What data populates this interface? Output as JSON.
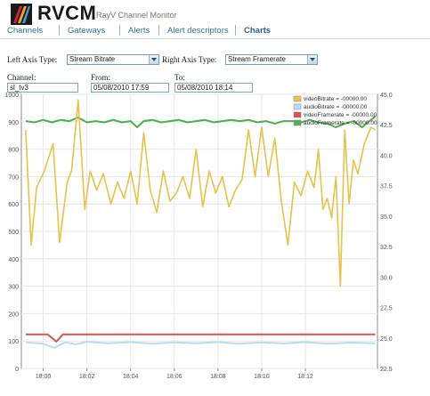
{
  "app": {
    "name": "RVCM",
    "subtitle": "RayV Channel Monitor"
  },
  "nav": {
    "items": [
      {
        "label": "Channels",
        "active": false
      },
      {
        "label": "Gateways",
        "active": false
      },
      {
        "label": "Alerts",
        "active": false
      },
      {
        "label": "Alert descriptors",
        "active": false
      },
      {
        "label": "Charts",
        "active": true
      }
    ]
  },
  "controls": {
    "left_axis_label": "Left Axis Type:",
    "left_axis_value": "Stream Bitrate",
    "right_axis_label": "Right Axis Type:",
    "right_axis_value": "Stream Framerate",
    "channel_label": "Channel:",
    "channel_value": "sl_tv3",
    "from_label": "From:",
    "from_value": "05/08/2010 17:59",
    "to_label": "To:",
    "to_value": "05/08/2010 18:14"
  },
  "chart_data": {
    "type": "line",
    "x_ticks": [
      "18:00",
      "18:02",
      "18:04",
      "18:06",
      "18:08",
      "18:10",
      "18:12"
    ],
    "x_range_min": [
      -0.8,
      15.2
    ],
    "left_ylim": [
      0,
      1000
    ],
    "left_ticks": [
      0,
      100,
      200,
      300,
      400,
      500,
      600,
      700,
      800,
      900,
      1000
    ],
    "right_ylim": [
      22.5,
      45.0
    ],
    "right_ticks": [
      "22.5",
      "25.0",
      "27.5",
      "30.0",
      "32.5",
      "35.0",
      "37.5",
      "40.0",
      "42.5",
      "45.0"
    ],
    "grid": true,
    "legend_position": "top-right",
    "series": [
      {
        "name": "videoBitrate = -00000.00",
        "color": "#e8c24a",
        "axis": "left",
        "x": [
          -0.8,
          -0.55,
          -0.3,
          0.05,
          0.45,
          0.75,
          1.1,
          1.3,
          1.6,
          1.9,
          2.15,
          2.45,
          2.75,
          3.1,
          3.4,
          3.7,
          4.0,
          4.3,
          4.6,
          4.9,
          5.2,
          5.5,
          5.8,
          6.1,
          6.4,
          6.7,
          7.0,
          7.3,
          7.6,
          7.9,
          8.2,
          8.5,
          8.8,
          9.1,
          9.4,
          9.7,
          10.0,
          10.3,
          10.6,
          10.9,
          11.2,
          11.5,
          11.8,
          12.1,
          12.4,
          12.6,
          12.8,
          13.0,
          13.2,
          13.4,
          13.6,
          13.8,
          14.0,
          14.2,
          14.4,
          14.7,
          15.0,
          15.2
        ],
        "y": [
          870,
          450,
          660,
          720,
          820,
          460,
          680,
          720,
          980,
          580,
          720,
          650,
          710,
          600,
          680,
          620,
          720,
          600,
          860,
          650,
          570,
          720,
          610,
          640,
          700,
          620,
          800,
          590,
          720,
          640,
          700,
          590,
          650,
          690,
          870,
          700,
          880,
          700,
          840,
          610,
          450,
          680,
          630,
          720,
          660,
          800,
          580,
          620,
          550,
          700,
          300,
          870,
          600,
          760,
          710,
          820,
          880,
          870
        ]
      },
      {
        "name": "audioBitrate = -00000.00",
        "color": "#b8dcef",
        "axis": "left",
        "x": [
          -0.8,
          0.0,
          0.5,
          1.0,
          1.5,
          2.0,
          3.0,
          4.0,
          5.0,
          6.0,
          7.0,
          8.0,
          9.0,
          10.0,
          11.0,
          12.0,
          13.0,
          14.0,
          15.2
        ],
        "y": [
          95,
          90,
          75,
          95,
          88,
          97,
          92,
          96,
          90,
          95,
          92,
          96,
          90,
          95,
          91,
          96,
          90,
          94,
          92
        ]
      },
      {
        "name": "videoFramerate = -00000.00",
        "color": "#d9534f",
        "axis": "right",
        "x": [
          -0.8,
          0.2,
          0.6,
          0.9,
          1.2,
          3.0,
          6.0,
          9.0,
          12.0,
          15.2
        ],
        "y": [
          25.3,
          25.3,
          24.7,
          25.3,
          25.3,
          25.3,
          25.3,
          25.3,
          25.3,
          25.3
        ]
      },
      {
        "name": "audioFramerate = -00000.00",
        "color": "#4cae4c",
        "axis": "right",
        "x": [
          -0.8,
          -0.4,
          0.0,
          0.4,
          0.8,
          1.2,
          1.6,
          2.0,
          2.4,
          2.8,
          3.2,
          3.6,
          4.0,
          4.3,
          4.6,
          5.0,
          5.4,
          5.8,
          6.2,
          6.6,
          7.0,
          7.4,
          7.8,
          8.2,
          8.6,
          9.0,
          9.4,
          9.8,
          10.2,
          10.6,
          11.0,
          11.4,
          11.8,
          12.2,
          12.6,
          13.0,
          13.4,
          13.8,
          14.2,
          14.6,
          15.2
        ],
        "y": [
          42.8,
          42.7,
          42.9,
          42.7,
          42.9,
          42.8,
          43.1,
          42.7,
          42.8,
          42.7,
          42.9,
          42.7,
          42.8,
          42.3,
          42.8,
          42.9,
          42.7,
          42.8,
          42.9,
          42.7,
          42.8,
          42.9,
          42.7,
          42.8,
          42.9,
          42.8,
          42.9,
          42.7,
          42.8,
          42.6,
          42.8,
          42.8,
          42.7,
          42.9,
          42.7,
          42.6,
          42.3,
          42.6,
          42.8,
          42.3,
          43.2
        ]
      }
    ]
  }
}
